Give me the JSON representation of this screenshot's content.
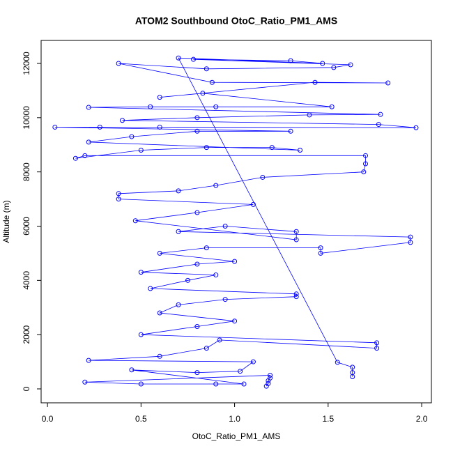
{
  "chart_data": {
    "type": "line",
    "title": "ATOM2 Southbound OtoC_Ratio_PM1_AMS",
    "x_label": "OtoC_Ratio_PM1_AMS",
    "y_label": "Altitude (m)",
    "color": "#0000ff",
    "markers": true,
    "xlim": [
      -0.034,
      2.052
    ],
    "ylim": [
      -514,
      12848
    ],
    "xticks": [
      {
        "value": 0,
        "label": "0.0"
      },
      {
        "value": 0.5,
        "label": "0.5"
      },
      {
        "value": 1,
        "label": "1.0"
      },
      {
        "value": 1.5,
        "label": "1.5"
      },
      {
        "value": 2,
        "label": "2.0"
      }
    ],
    "yticks": [
      0,
      2000,
      4000,
      6000,
      8000,
      10000,
      12000
    ],
    "x": [
      1.17,
      1.18,
      1.18,
      1.19,
      1.19,
      0.2,
      0.5,
      0.9,
      1.05,
      0.45,
      0.8,
      1.03,
      1.1,
      0.22,
      0.6,
      0.85,
      0.92,
      1.76,
      1.76,
      0.5,
      0.8,
      1.0,
      0.6,
      0.7,
      0.95,
      1.33,
      1.33,
      0.55,
      0.75,
      0.9,
      0.5,
      0.8,
      1.0,
      0.6,
      0.85,
      1.46,
      1.46,
      1.94,
      1.94,
      0.7,
      0.95,
      1.33,
      1.33,
      0.47,
      0.8,
      1.1,
      0.38,
      0.38,
      0.7,
      0.9,
      1.15,
      1.69,
      1.7,
      1.7,
      0.2,
      0.15,
      0.5,
      0.85,
      1.2,
      1.35,
      0.22,
      0.45,
      0.8,
      1.3,
      0.04,
      0.28,
      0.6,
      1.97,
      1.77,
      0.4,
      0.8,
      1.4,
      1.78,
      0.22,
      0.55,
      0.9,
      1.52,
      0.83,
      0.6,
      1.43,
      1.82,
      0.88,
      0.38,
      0.85,
      1.53,
      1.62,
      0.78,
      1.3,
      1.47,
      0.7,
      1.55,
      1.63,
      1.63,
      1.63
    ],
    "values": [
      100,
      200,
      300,
      400,
      500,
      250,
      180,
      180,
      180,
      700,
      600,
      650,
      1000,
      1050,
      1200,
      1500,
      1800,
      1500,
      1700,
      2000,
      2300,
      2500,
      2800,
      3100,
      3300,
      3400,
      3500,
      3700,
      4000,
      4200,
      4300,
      4600,
      4700,
      5000,
      5200,
      5200,
      5000,
      5400,
      5600,
      5800,
      6000,
      5800,
      5500,
      6200,
      6500,
      6800,
      7000,
      7200,
      7300,
      7500,
      7800,
      8000,
      8300,
      8600,
      8600,
      8500,
      8800,
      8900,
      8900,
      8800,
      9100,
      9300,
      9500,
      9500,
      9650,
      9650,
      9650,
      9630,
      9750,
      9900,
      10000,
      10100,
      10120,
      10380,
      10400,
      10400,
      10400,
      10900,
      10750,
      11300,
      11280,
      11300,
      12000,
      11800,
      11850,
      11950,
      12150,
      12100,
      12000,
      12200,
      980,
      800,
      600,
      450
    ]
  }
}
